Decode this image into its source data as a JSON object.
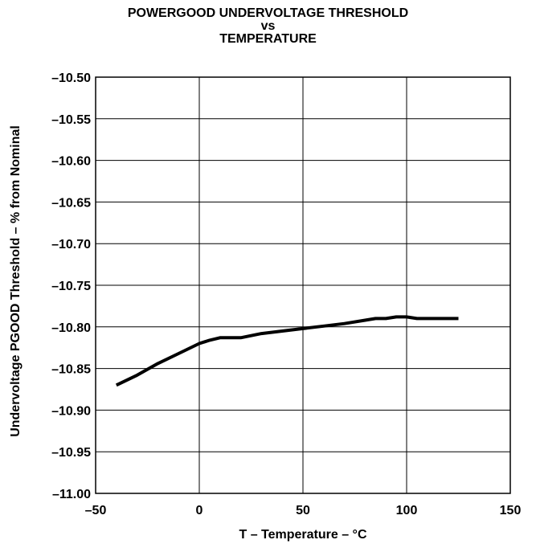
{
  "chart_data": {
    "type": "line",
    "title": [
      "POWERGOOD UNDERVOLTAGE THRESHOLD",
      "vs",
      "TEMPERATURE"
    ],
    "xlabel": "T – Temperature – °C",
    "ylabel": "Undervoltage PGOOD Threshold – % from Nominal",
    "xlim": [
      -50,
      150
    ],
    "ylim": [
      -11.0,
      -10.5
    ],
    "x_ticks": [
      -50,
      0,
      50,
      100,
      150
    ],
    "x_tick_labels": [
      "–50",
      "0",
      "50",
      "100",
      "150"
    ],
    "y_ticks": [
      -10.5,
      -10.55,
      -10.6,
      -10.65,
      -10.7,
      -10.75,
      -10.8,
      -10.85,
      -10.9,
      -10.95,
      -11.0
    ],
    "y_tick_labels": [
      "–10.50",
      "–10.55",
      "–10.60",
      "–10.65",
      "–10.70",
      "–10.75",
      "–10.80",
      "–10.85",
      "–10.90",
      "–10.95",
      "–11.00"
    ],
    "grid": true,
    "series": [
      {
        "x": [
          -40,
          -30,
          -20,
          -10,
          0,
          5,
          10,
          20,
          30,
          40,
          50,
          60,
          70,
          80,
          85,
          90,
          95,
          100,
          105,
          110,
          125
        ],
        "y": [
          -10.87,
          -10.858,
          -10.844,
          -10.832,
          -10.82,
          -10.816,
          -10.813,
          -10.813,
          -10.808,
          -10.805,
          -10.802,
          -10.799,
          -10.796,
          -10.792,
          -10.79,
          -10.79,
          -10.788,
          -10.788,
          -10.79,
          -10.79,
          -10.79
        ]
      }
    ]
  }
}
